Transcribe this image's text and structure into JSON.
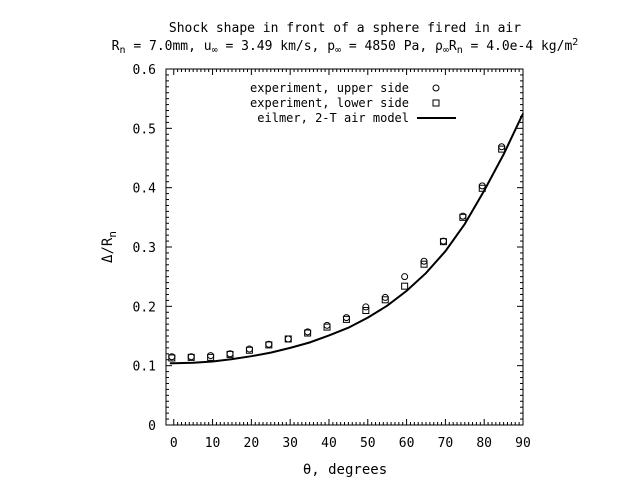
{
  "chart_data": {
    "type": "scatter",
    "title": "Shock shape in front of a sphere fired in air",
    "subtitle": {
      "rn_sym": "R",
      "rn_sub": "n",
      "rn_val": " = 7.0mm, u",
      "uinf_sub": "∞",
      "uinf_val": " = 3.49 km/s, p",
      "pinf_sub": "∞",
      "pinf_val": " = 4850 Pa, ρ",
      "rho_sub": "∞",
      "rho_R": "R",
      "rho_R_sub": "n",
      "rho_val": " = 4.0e-4 kg/m",
      "rho_sup": "2"
    },
    "xlabel": "θ, degrees",
    "ylabel": {
      "main": "Δ/R",
      "sub": "n"
    },
    "xlim": [
      -2,
      90
    ],
    "ylim": [
      0,
      0.6
    ],
    "xticks": [
      0,
      10,
      20,
      30,
      40,
      50,
      60,
      70,
      80,
      90
    ],
    "yticks": [
      0,
      0.1,
      0.2,
      0.3,
      0.4,
      0.5,
      0.6
    ],
    "xtick_labels": [
      "0",
      "10",
      "20",
      "30",
      "40",
      "50",
      "60",
      "70",
      "80",
      "90"
    ],
    "ytick_labels": [
      "0",
      "0.1",
      "0.2",
      "0.3",
      "0.4",
      "0.5",
      "0.6"
    ],
    "grid": false,
    "legend_position": "top-center",
    "series": [
      {
        "name": "experiment, upper side",
        "marker": "circle",
        "x": [
          -0.5,
          4.5,
          9.5,
          14.5,
          19.5,
          24.5,
          29.5,
          34.5,
          39.5,
          44.5,
          49.5,
          54.5,
          59.5,
          64.5,
          69.5,
          74.5,
          79.5,
          84.5
        ],
        "y": [
          0.115,
          0.115,
          0.117,
          0.12,
          0.128,
          0.136,
          0.145,
          0.157,
          0.168,
          0.181,
          0.199,
          0.215,
          0.25,
          0.276,
          0.31,
          0.352,
          0.403,
          0.469
        ]
      },
      {
        "name": "experiment, lower side",
        "marker": "square",
        "x": [
          -0.5,
          4.5,
          9.5,
          14.5,
          19.5,
          24.5,
          29.5,
          34.5,
          39.5,
          44.5,
          49.5,
          54.5,
          59.5,
          64.5,
          69.5,
          74.5,
          79.5,
          84.5
        ],
        "y": [
          0.113,
          0.114,
          0.114,
          0.119,
          0.126,
          0.135,
          0.145,
          0.155,
          0.165,
          0.178,
          0.193,
          0.211,
          0.234,
          0.271,
          0.309,
          0.35,
          0.399,
          0.465
        ]
      },
      {
        "name": "eilmer, 2-T air model",
        "marker": "line",
        "x": [
          -1,
          0,
          5,
          10,
          15,
          20,
          25,
          30,
          35,
          40,
          45,
          50,
          55,
          60,
          65,
          70,
          75,
          80,
          85,
          90
        ],
        "y": [
          0.104,
          0.104,
          0.105,
          0.107,
          0.111,
          0.116,
          0.122,
          0.13,
          0.139,
          0.151,
          0.164,
          0.181,
          0.201,
          0.226,
          0.256,
          0.293,
          0.339,
          0.395,
          0.456,
          0.525
        ]
      }
    ]
  }
}
